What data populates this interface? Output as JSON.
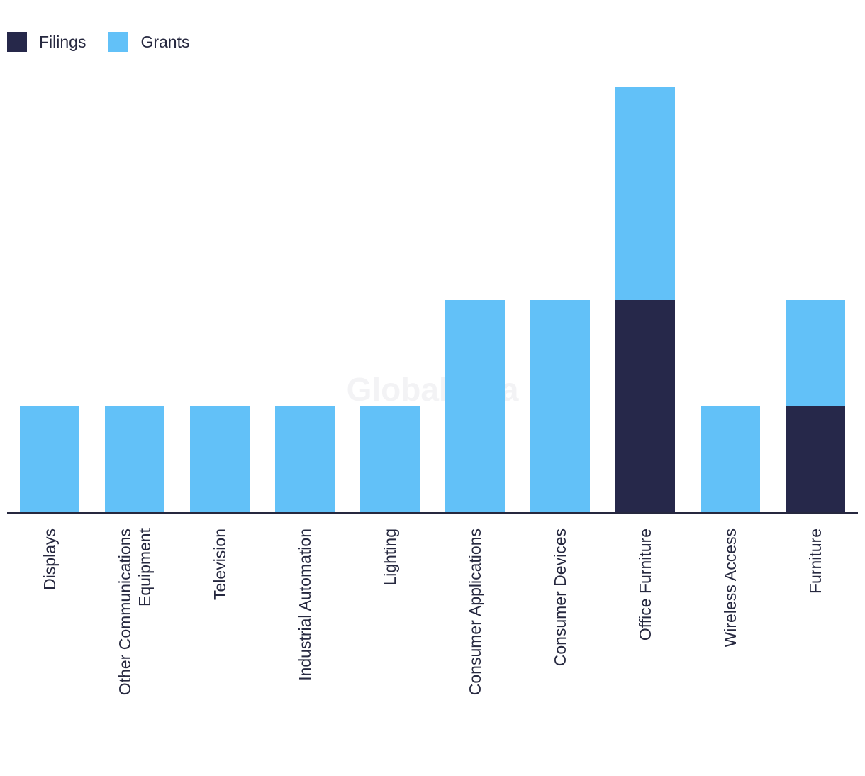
{
  "chart_data": {
    "type": "bar",
    "stacked": true,
    "title": "",
    "xlabel": "",
    "ylabel": "",
    "ylim": [
      0,
      4
    ],
    "grid": false,
    "legend_position": "top-left",
    "categories": [
      [
        "Displays"
      ],
      [
        "Other Communications",
        "Equipment"
      ],
      [
        "Television"
      ],
      [
        "Industrial Automation"
      ],
      [
        "Lighting"
      ],
      [
        "Consumer Applications"
      ],
      [
        "Consumer Devices"
      ],
      [
        "Office Furniture"
      ],
      [
        "Wireless Access"
      ],
      [
        "Furniture"
      ]
    ],
    "series": [
      {
        "name": "Filings",
        "color": "#26284a",
        "values": [
          0,
          0,
          0,
          0,
          0,
          0,
          0,
          2,
          0,
          1
        ]
      },
      {
        "name": "Grants",
        "color": "#62c1f8",
        "values": [
          1,
          1,
          1,
          1,
          1,
          2,
          2,
          2,
          1,
          1
        ]
      }
    ]
  },
  "legend": {
    "items": [
      {
        "label": "Filings",
        "color": "#26284a"
      },
      {
        "label": "Grants",
        "color": "#62c1f8"
      }
    ]
  },
  "watermark": {
    "text": "GlobalData"
  },
  "colors": {
    "axis": "#26283f",
    "text": "#26283f",
    "watermark": "#f3f3f5"
  }
}
